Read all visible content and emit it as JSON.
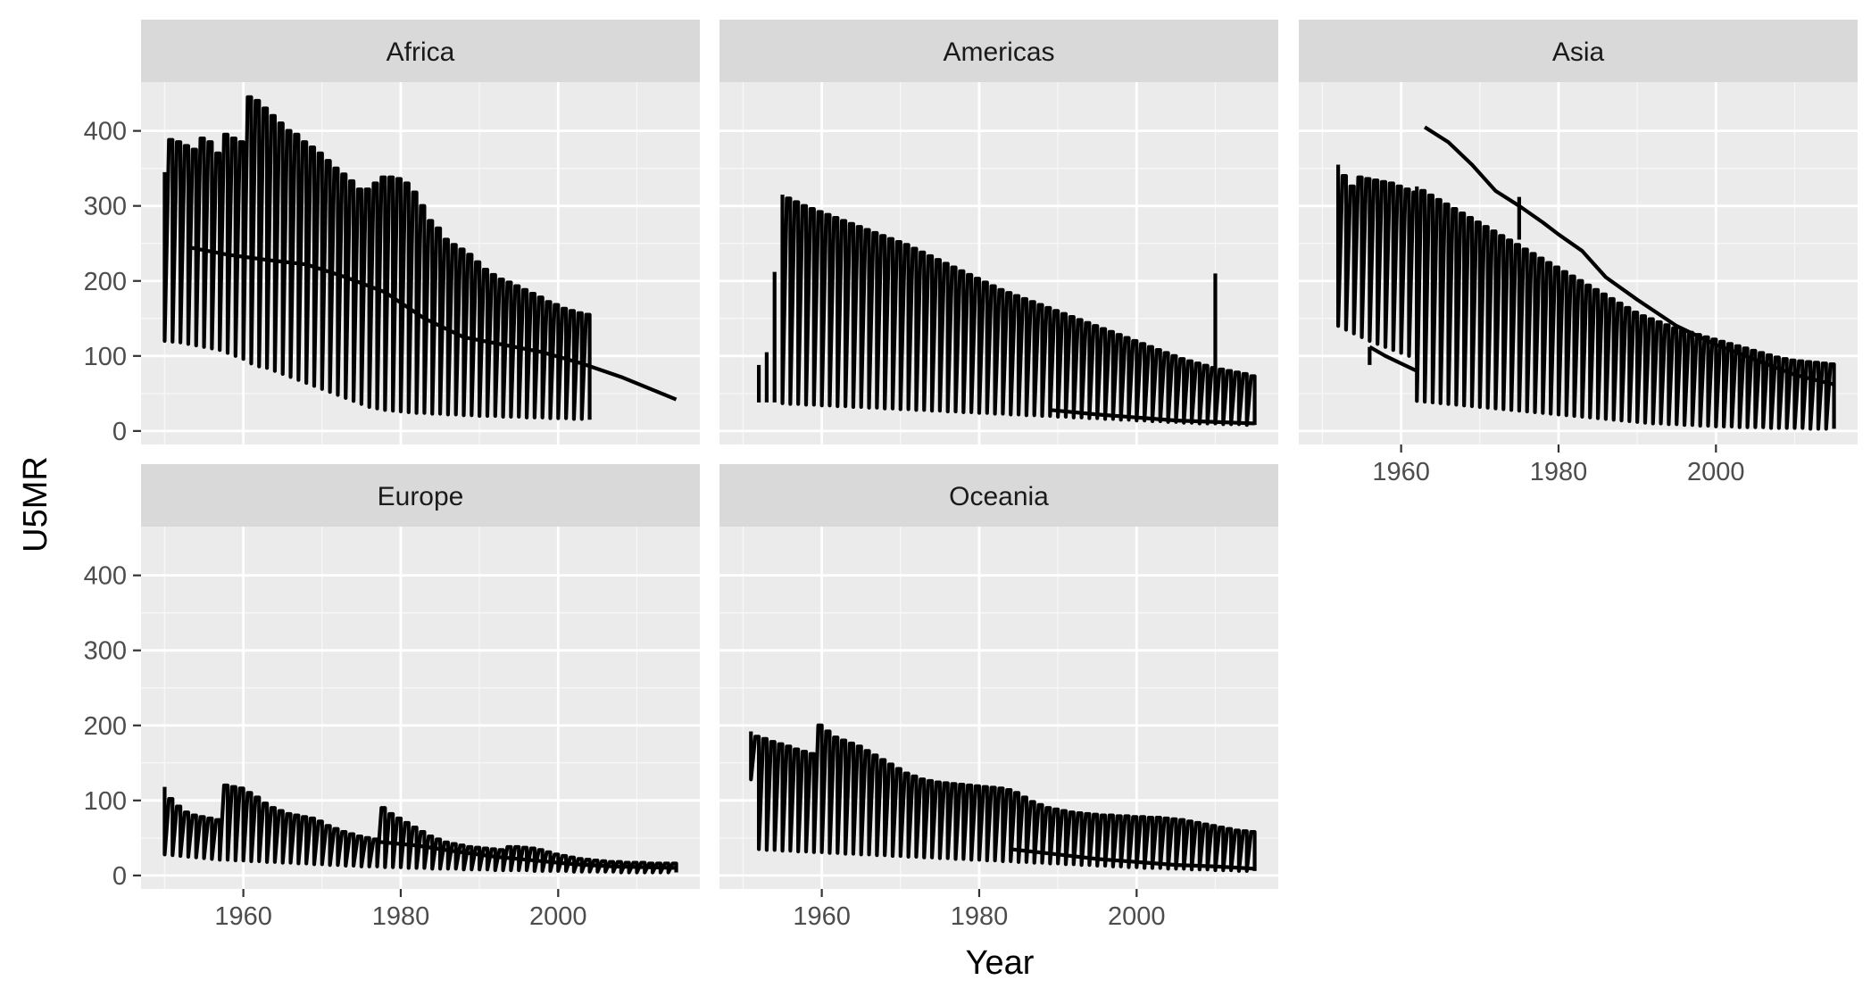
{
  "chart_data": {
    "type": "line",
    "xlabel": "Year",
    "ylabel": "U5MR",
    "xlim": [
      1947,
      2018
    ],
    "ylim": [
      -18,
      465
    ],
    "x_ticks": [
      1960,
      1980,
      2000
    ],
    "y_ticks": [
      0,
      100,
      200,
      300,
      400
    ],
    "grid": true,
    "facets": [
      {
        "name": "Africa",
        "bands": [
          {
            "start": 1950,
            "end": 2015,
            "top": [
              345,
              388,
              385,
              380,
              375,
              390,
              385,
              370,
              395,
              390,
              385,
              445,
              440,
              430,
              420,
              410,
              400,
              395,
              385,
              378,
              370,
              360,
              350,
              342,
              333,
              322,
              322,
              330,
              338,
              338,
              336,
              330,
              318,
              300,
              280,
              270,
              255,
              248,
              242,
              235,
              225,
              215,
              208,
              202,
              198,
              193,
              188,
              183,
              178,
              172,
              168,
              163,
              160,
              157,
              155
            ],
            "bottom": [
              120,
              119,
              118,
              116,
              114,
              112,
              110,
              108,
              104,
              100,
              96,
              90,
              86,
              84,
              80,
              76,
              72,
              68,
              64,
              60,
              56,
              52,
              48,
              44,
              40,
              36,
              32,
              30,
              28,
              27,
              26,
              25,
              24,
              24,
              23,
              23,
              22,
              22,
              21,
              21,
              20,
              20,
              20,
              19,
              19,
              19,
              18,
              18,
              18,
              17,
              17,
              17,
              16,
              16,
              15
            ]
          }
        ],
        "series": [
          {
            "x": [
              1953,
              1958,
              1963,
              1968,
              1973,
              1978,
              1983,
              1988,
              1993,
              1998,
              2003,
              2008,
              2015
            ],
            "y": [
              245,
              235,
              228,
              222,
              205,
              185,
              150,
              125,
              115,
              105,
              90,
              72,
              42
            ]
          }
        ]
      },
      {
        "name": "Americas",
        "bands": [
          {
            "start": 1955,
            "end": 2015,
            "top": [
              315,
              310,
              305,
              300,
              296,
              292,
              288,
              284,
              280,
              276,
              272,
              268,
              264,
              260,
              256,
              252,
              248,
              243,
              238,
              233,
              228,
              223,
              218,
              213,
              208,
              203,
              198,
              193,
              188,
              184,
              180,
              176,
              172,
              168,
              164,
              160,
              156,
              152,
              148,
              144,
              140,
              136,
              132,
              128,
              124,
              120,
              116,
              112,
              108,
              104,
              100,
              96,
              93,
              90,
              87,
              84,
              82,
              80,
              78,
              76,
              73
            ],
            "bottom": [
              37,
              36,
              36,
              35,
              35,
              34,
              34,
              33,
              33,
              32,
              32,
              31,
              31,
              30,
              30,
              29,
              29,
              28,
              28,
              27,
              27,
              26,
              26,
              25,
              25,
              24,
              24,
              23,
              23,
              22,
              22,
              21,
              21,
              20,
              20,
              19,
              19,
              18,
              18,
              17,
              17,
              16,
              16,
              15,
              15,
              14,
              14,
              13,
              13,
              12,
              12,
              11,
              11,
              10,
              10,
              10,
              9,
              9,
              9,
              8,
              8
            ]
          }
        ],
        "segments": [
          {
            "x": 1952,
            "y0": 38,
            "y1": 88
          },
          {
            "x": 1953,
            "y0": 38,
            "y1": 105
          },
          {
            "x": 1954,
            "y0": 38,
            "y1": 212
          },
          {
            "x": 2010,
            "y0": 12,
            "y1": 210
          }
        ],
        "series": [
          {
            "x": [
              1989,
              1995,
              2000,
              2005,
              2010,
              2015
            ],
            "y": [
              28,
              22,
              18,
              14,
              12,
              10
            ]
          }
        ]
      },
      {
        "name": "Asia",
        "bands": [
          {
            "start": 1952,
            "end": 1962,
            "top": [
              355,
              340,
              326,
              338,
              336,
              334,
              332,
              330,
              326,
              322,
              318
            ],
            "bottom": [
              140,
              135,
              130,
              125,
              120,
              116,
              112,
              108,
              104,
              100,
              96
            ]
          },
          {
            "start": 1962,
            "end": 2015,
            "top": [
              326,
              320,
              314,
              308,
              302,
              296,
              290,
              284,
              278,
              272,
              266,
              260,
              254,
              248,
              242,
              236,
              230,
              224,
              218,
              212,
              206,
              200,
              194,
              188,
              182,
              176,
              170,
              164,
              158,
              153,
              149,
              145,
              141,
              137,
              134,
              131,
              128,
              125,
              122,
              119,
              116,
              113,
              110,
              107,
              104,
              101,
              98,
              96,
              94,
              93,
              92,
              91,
              90,
              89
            ],
            "bottom": [
              40,
              39,
              38,
              37,
              36,
              35,
              34,
              33,
              32,
              31,
              30,
              29,
              28,
              27,
              26,
              25,
              24,
              23,
              22,
              21,
              20,
              19,
              18,
              17,
              16,
              15,
              14,
              13,
              12,
              11,
              10,
              10,
              9,
              9,
              8,
              8,
              7,
              7,
              6,
              6,
              6,
              5,
              5,
              5,
              5,
              4,
              4,
              4,
              4,
              4,
              3,
              3,
              3,
              3
            ]
          }
        ],
        "segments": [
          {
            "x": 1956,
            "y0": 88,
            "y1": 112
          },
          {
            "x": 1975,
            "y0": 255,
            "y1": 312
          }
        ],
        "series": [
          {
            "x": [
              1963,
              1966,
              1969,
              1972,
              1975,
              1978,
              1980,
              1983,
              1986,
              1990,
              1995,
              2000,
              2005,
              2010,
              2015
            ],
            "y": [
              405,
              385,
              355,
              320,
              300,
              278,
              262,
              240,
              205,
              175,
              140,
              115,
              95,
              75,
              62
            ]
          },
          {
            "x": [
              1956,
              1958,
              1960,
              1962
            ],
            "y": [
              112,
              100,
              90,
              80
            ]
          }
        ]
      },
      {
        "name": "Europe",
        "bands": [
          {
            "start": 1950,
            "end": 2015,
            "top": [
              118,
              102,
              92,
              84,
              80,
              78,
              76,
              74,
              120,
              118,
              116,
              110,
              104,
              96,
              90,
              86,
              82,
              80,
              78,
              76,
              72,
              66,
              62,
              58,
              55,
              52,
              50,
              48,
              90,
              82,
              76,
              70,
              64,
              58,
              52,
              48,
              44,
              42,
              40,
              38,
              37,
              36,
              35,
              34,
              38,
              38,
              37,
              36,
              34,
              31,
              28,
              26,
              24,
              22,
              21,
              20,
              19,
              18,
              18,
              17,
              17,
              17,
              16,
              16,
              16,
              16
            ],
            "bottom": [
              28,
              27,
              26,
              25,
              24,
              23,
              22,
              21,
              21,
              20,
              20,
              19,
              19,
              18,
              18,
              17,
              17,
              16,
              16,
              15,
              15,
              14,
              14,
              13,
              13,
              12,
              12,
              12,
              11,
              11,
              11,
              10,
              10,
              10,
              9,
              9,
              9,
              9,
              8,
              8,
              8,
              8,
              7,
              7,
              7,
              7,
              7,
              6,
              6,
              6,
              6,
              6,
              5,
              5,
              5,
              5,
              5,
              5,
              4,
              4,
              4,
              4,
              4,
              4,
              4,
              4
            ]
          }
        ],
        "series": [
          {
            "x": [
              1977,
              1982,
              1987,
              1992,
              1997,
              2002,
              2007,
              2015
            ],
            "y": [
              45,
              40,
              32,
              25,
              20,
              15,
              12,
              10
            ]
          }
        ]
      },
      {
        "name": "Oceania",
        "bands": [
          {
            "start": 1951,
            "end": 2015,
            "top": [
              192,
              185,
              182,
              178,
              175,
              172,
              168,
              165,
              162,
              200,
              192,
              184,
              180,
              176,
              172,
              166,
              160,
              154,
              148,
              142,
              136,
              132,
              128,
              126,
              124,
              123,
              122,
              121,
              120,
              119,
              118,
              117,
              116,
              114,
              110,
              104,
              98,
              94,
              90,
              88,
              86,
              84,
              83,
              82,
              81,
              80,
              80,
              79,
              79,
              78,
              78,
              77,
              77,
              76,
              75,
              74,
              72,
              70,
              68,
              66,
              64,
              62,
              60,
              59,
              58
            ],
            "bottom": [
              128,
              35,
              34,
              34,
              33,
              33,
              32,
              32,
              31,
              31,
              30,
              30,
              29,
              29,
              28,
              28,
              27,
              27,
              26,
              26,
              25,
              25,
              24,
              24,
              23,
              23,
              22,
              22,
              21,
              21,
              20,
              20,
              19,
              19,
              18,
              18,
              17,
              17,
              16,
              16,
              15,
              15,
              14,
              14,
              13,
              13,
              12,
              12,
              11,
              11,
              10,
              10,
              10,
              9,
              9,
              9,
              8,
              8,
              8,
              7,
              7,
              7,
              6,
              6,
              6
            ]
          }
        ],
        "series": [
          {
            "x": [
              1984,
              1990,
              1995,
              2000,
              2005,
              2010,
              2015
            ],
            "y": [
              35,
              28,
              22,
              18,
              14,
              12,
              9
            ]
          }
        ]
      }
    ]
  }
}
